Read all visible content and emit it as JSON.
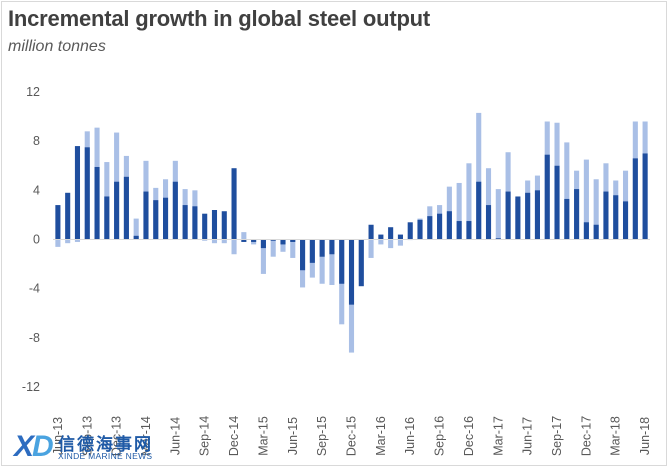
{
  "chart_data": {
    "type": "bar",
    "title": "Incremental growth in global steel output",
    "subtitle": "million tonnes",
    "ylim": [
      -12,
      12
    ],
    "yticks": [
      12,
      8,
      4,
      0,
      -4,
      -8,
      -12
    ],
    "grid": false,
    "categories": [
      "Jun-13",
      "Jul-13",
      "Aug-13",
      "Sep-13",
      "Oct-13",
      "Nov-13",
      "Dec-13",
      "Jan-14",
      "Feb-14",
      "Mar-14",
      "Apr-14",
      "May-14",
      "Jun-14",
      "Jul-14",
      "Aug-14",
      "Sep-14",
      "Oct-14",
      "Nov-14",
      "Dec-14",
      "Jan-15",
      "Feb-15",
      "Mar-15",
      "Apr-15",
      "May-15",
      "Jun-15",
      "Jul-15",
      "Aug-15",
      "Sep-15",
      "Oct-15",
      "Nov-15",
      "Dec-15",
      "Jan-16",
      "Feb-16",
      "Mar-16",
      "Apr-16",
      "May-16",
      "Jun-16",
      "Jul-16",
      "Aug-16",
      "Sep-16",
      "Oct-16",
      "Nov-16",
      "Dec-16",
      "Jan-17",
      "Feb-17",
      "Mar-17",
      "Apr-17",
      "May-17",
      "Jun-17",
      "Jul-17",
      "Aug-17",
      "Sep-17",
      "Oct-17",
      "Nov-17",
      "Dec-17",
      "Jan-18",
      "Feb-18",
      "Mar-18",
      "Apr-18",
      "May-18",
      "Jun-18"
    ],
    "xtick_labels": [
      "Jun-13",
      "Sep-13",
      "Dec-13",
      "Mar-14",
      "Jun-14",
      "Sep-14",
      "Dec-14",
      "Mar-15",
      "Jun-15",
      "Sep-15",
      "Dec-15",
      "Mar-16",
      "Jun-16",
      "Sep-16",
      "Dec-16",
      "Mar-17",
      "Jun-17",
      "Sep-17",
      "Dec-17",
      "Mar-18",
      "Jun-18"
    ],
    "series": [
      {
        "color": "#a9bfe6",
        "values": [
          -0.6,
          -0.3,
          -0.2,
          8.8,
          9.1,
          6.3,
          8.7,
          6.8,
          1.7,
          6.4,
          4.2,
          4.9,
          6.4,
          4.1,
          4.0,
          -0.1,
          -0.3,
          -0.3,
          -1.2,
          0.6,
          -0.4,
          -2.8,
          -1.4,
          -1.0,
          -1.5,
          -3.9,
          -3.1,
          -3.6,
          -3.7,
          -6.9,
          -9.2,
          -3.3,
          -1.5,
          -0.4,
          -0.7,
          -0.5,
          0.0,
          1.7,
          2.7,
          2.8,
          4.3,
          4.6,
          6.2,
          10.3,
          5.8,
          4.1,
          7.1,
          3.3,
          4.8,
          5.2,
          9.6,
          9.5,
          7.9,
          5.6,
          6.5,
          4.9,
          6.2,
          4.8,
          5.6,
          9.6,
          9.6
        ]
      },
      {
        "color": "#1f4e9e",
        "values": [
          2.8,
          3.8,
          7.6,
          7.5,
          5.9,
          3.5,
          4.7,
          5.1,
          0.3,
          3.9,
          3.2,
          3.4,
          4.7,
          2.8,
          2.7,
          2.1,
          2.4,
          2.3,
          5.8,
          -0.2,
          -0.2,
          -0.7,
          -0.1,
          -0.4,
          -0.2,
          -2.5,
          -1.9,
          -1.4,
          -1.2,
          -3.6,
          -5.3,
          -3.8,
          1.2,
          0.4,
          1.0,
          0.4,
          1.4,
          1.6,
          1.9,
          2.1,
          2.3,
          1.5,
          1.5,
          4.7,
          2.8,
          0.1,
          3.9,
          3.5,
          3.8,
          4.0,
          6.9,
          6.0,
          3.3,
          4.1,
          1.4,
          1.2,
          3.9,
          3.6,
          3.1,
          6.6,
          7.0
        ]
      }
    ]
  },
  "watermark": {
    "chinese": "信德海事网",
    "english": "XINDE MARINE NEWS"
  }
}
